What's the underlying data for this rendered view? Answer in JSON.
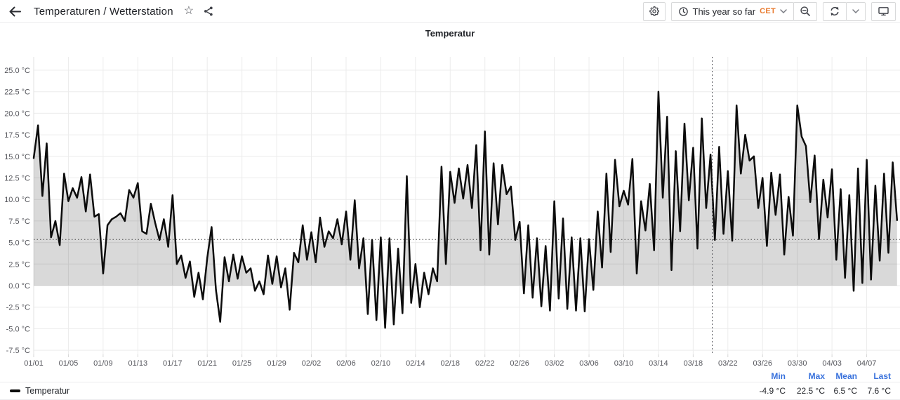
{
  "topbar": {
    "title": "Temperaturen / Wetterstation",
    "time_range_label": "This year so far",
    "timezone": "CET",
    "icons": {
      "back": "arrow-left",
      "favorite": "star-outline",
      "share": "share-network",
      "settings": "gear",
      "time": "clock",
      "zoom_out": "magnifier-minus",
      "refresh": "circular-arrows",
      "refresh_interval": "chevron-down",
      "kiosk": "monitor"
    }
  },
  "panel": {
    "title": "Temperatur"
  },
  "colors": {
    "series_line": "#0c0c0c",
    "area_fill": "rgba(0,0,0,0.15)",
    "grid": "#ececec",
    "axis_text": "#55565c",
    "stat_header_blue": "#3871dc",
    "timezone_orange": "#e87a2e",
    "threshold_dotted": "#4c4c4c"
  },
  "chart_data": {
    "type": "area",
    "title": "Temperatur",
    "unit": "°C",
    "xlabel": "",
    "ylabel": "",
    "ylim": [
      -7.5,
      25.0
    ],
    "y_tick_step": 2.5,
    "y_tick_labels": [
      "25.0 °C",
      "22.5 °C",
      "20.0 °C",
      "17.5 °C",
      "15.0 °C",
      "12.5 °C",
      "10.0 °C",
      "7.5 °C",
      "5.0 °C",
      "2.5 °C",
      "0.0 °C",
      "-2.5 °C",
      "-5.0 °C",
      "-7.5 °C"
    ],
    "x_tick_labels": [
      "01/01",
      "01/05",
      "01/09",
      "01/13",
      "01/17",
      "01/21",
      "01/25",
      "01/29",
      "02/02",
      "02/06",
      "02/10",
      "02/14",
      "02/18",
      "02/22",
      "02/26",
      "03/02",
      "03/06",
      "03/10",
      "03/14",
      "03/18",
      "03/22",
      "03/26",
      "03/30",
      "04/03",
      "04/07"
    ],
    "x_tick_interval_days": 4,
    "x_start_day": 0,
    "x_step_days": 0.5,
    "threshold_line_value": 5.35,
    "annotation_vline_day": 78.2,
    "grid": true,
    "legend_position": "bottom",
    "series": [
      {
        "name": "Temperatur",
        "color": "#0c0c0c",
        "fill": "rgba(0,0,0,0.15)",
        "fill_clamped_at_zero": true,
        "values": [
          14.8,
          18.6,
          10.4,
          16.5,
          5.6,
          7.5,
          4.7,
          13.0,
          9.8,
          11.3,
          10.2,
          12.6,
          8.6,
          12.9,
          8.0,
          8.3,
          1.4,
          7.0,
          7.7,
          8.0,
          8.4,
          7.5,
          11.1,
          10.2,
          11.9,
          6.3,
          6.0,
          9.5,
          7.3,
          5.3,
          7.7,
          4.5,
          10.5,
          2.5,
          3.5,
          0.9,
          2.8,
          -1.3,
          1.5,
          -1.6,
          3.2,
          6.8,
          -0.5,
          -4.2,
          3.3,
          0.5,
          3.6,
          0.8,
          3.4,
          1.5,
          2.0,
          -0.6,
          0.5,
          -1.0,
          3.5,
          0.2,
          3.4,
          -0.2,
          2.0,
          -2.8,
          3.8,
          2.7,
          7.0,
          3.0,
          6.2,
          2.7,
          7.9,
          4.5,
          6.3,
          5.5,
          7.7,
          4.8,
          8.6,
          3.0,
          9.9,
          2.0,
          5.5,
          -3.3,
          5.3,
          -4.0,
          5.6,
          -4.9,
          5.5,
          -4.5,
          4.3,
          -3.2,
          12.7,
          -2.0,
          2.5,
          -2.5,
          1.5,
          -1.0,
          2.0,
          0.5,
          13.8,
          2.5,
          13.2,
          9.6,
          13.6,
          10.1,
          14.0,
          9.0,
          16.3,
          4.1,
          17.9,
          3.6,
          14.2,
          7.1,
          14.0,
          10.6,
          11.5,
          5.3,
          7.4,
          -0.9,
          7.0,
          -1.4,
          5.5,
          -2.4,
          4.6,
          -2.9,
          9.8,
          -1.5,
          7.8,
          -2.7,
          5.6,
          -2.9,
          5.5,
          -3.0,
          5.4,
          -0.5,
          8.6,
          2.1,
          13.0,
          3.9,
          14.6,
          9.2,
          11.0,
          9.4,
          14.7,
          1.4,
          9.8,
          6.4,
          11.8,
          4.1,
          22.5,
          10.2,
          19.6,
          1.8,
          15.6,
          6.3,
          18.8,
          9.9,
          16.0,
          4.3,
          19.4,
          9.0,
          15.2,
          5.3,
          16.1,
          6.0,
          13.3,
          5.2,
          20.9,
          13.0,
          17.5,
          14.5,
          15.0,
          9.0,
          12.5,
          4.6,
          13.1,
          8.2,
          12.9,
          3.6,
          10.3,
          5.8,
          20.9,
          17.3,
          16.2,
          9.7,
          15.1,
          5.4,
          12.3,
          7.9,
          13.5,
          3.0,
          11.2,
          0.9,
          10.5,
          -0.6,
          13.6,
          0.3,
          14.6,
          0.7,
          11.6,
          2.9,
          13.0,
          3.8,
          14.3,
          7.6
        ]
      }
    ],
    "stats": {
      "headers": [
        "Min",
        "Max",
        "Mean",
        "Last"
      ],
      "values": [
        "-4.9 °C",
        "22.5 °C",
        "6.5 °C",
        "7.6 °C"
      ]
    }
  }
}
